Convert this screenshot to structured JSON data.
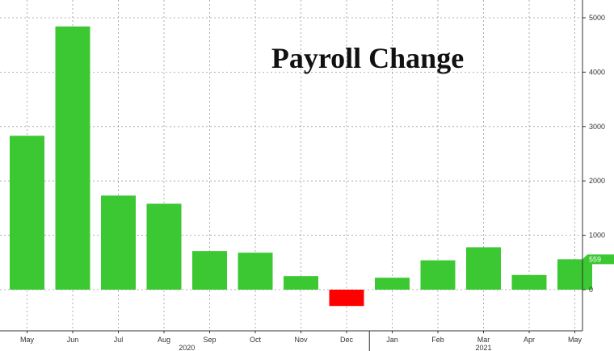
{
  "chart_data": {
    "type": "bar",
    "title": "Payroll Change",
    "categories": [
      "May",
      "Jun",
      "Jul",
      "Aug",
      "Sep",
      "Oct",
      "Nov",
      "Dec",
      "Jan",
      "Feb",
      "Mar",
      "Apr",
      "May"
    ],
    "years": [
      {
        "label": "2020",
        "start_index": 0,
        "end_index": 7
      },
      {
        "label": "2021",
        "start_index": 8,
        "end_index": 12
      }
    ],
    "values": [
      2830,
      4840,
      1730,
      1580,
      710,
      680,
      250,
      -300,
      220,
      540,
      780,
      270,
      559
    ],
    "yticks": [
      0,
      1000,
      2000,
      3000,
      4000,
      5000
    ],
    "ylim": [
      -750,
      5300
    ],
    "last_value_label": "559",
    "grid": true,
    "colors": {
      "positive": "#3cc832",
      "negative": "#ff0000",
      "last_value_marker": "#3cc832"
    }
  }
}
